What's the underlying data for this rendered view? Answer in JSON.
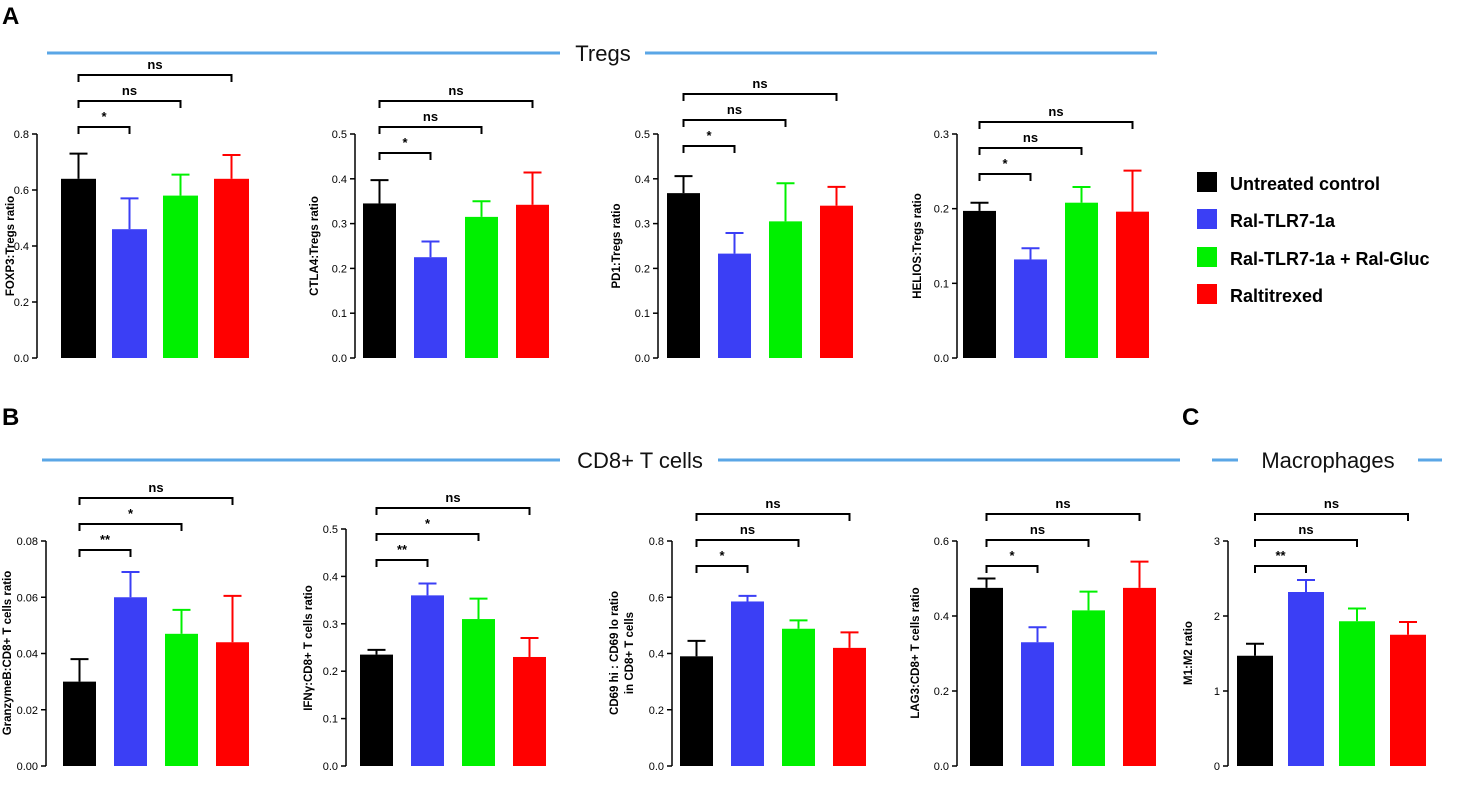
{
  "panels": {
    "A": "A",
    "B": "B",
    "C": "C"
  },
  "sections": {
    "tregs": "Tregs",
    "cd8": "CD8+ T cells",
    "macrophages": "Macrophages"
  },
  "colors": {
    "accent_line": "#5aa6e6",
    "groups": [
      "#000000",
      "#3b3ff5",
      "#00f000",
      "#ff0000"
    ]
  },
  "legend": [
    {
      "label": "Untreated control",
      "color": "#000000"
    },
    {
      "label": "Ral-TLR7-1a",
      "color": "#3b3ff5"
    },
    {
      "label": "Ral-TLR7-1a + Ral-Gluc",
      "color": "#00f000"
    },
    {
      "label": "Raltitrexed",
      "color": "#ff0000"
    }
  ],
  "chart_data": [
    {
      "id": "foxp3",
      "type": "bar",
      "title": "",
      "xlabel": "",
      "ylabel": "FOXP3:Tregs ratio",
      "categories": [
        "Untreated control",
        "Ral-TLR7-1a",
        "Ral-TLR7-1a + Ral-Gluc",
        "Raltitrexed"
      ],
      "values": [
        0.64,
        0.46,
        0.58,
        0.64
      ],
      "errors": [
        0.09,
        0.11,
        0.075,
        0.085
      ],
      "ylim": [
        0,
        0.8
      ],
      "yticks": [
        "0.0",
        "0.2",
        "0.4",
        "0.6",
        "0.8"
      ],
      "significance": [
        {
          "from": 0,
          "to": 1,
          "label": "*"
        },
        {
          "from": 0,
          "to": 2,
          "label": "ns"
        },
        {
          "from": 0,
          "to": 3,
          "label": "ns"
        }
      ]
    },
    {
      "id": "ctla4",
      "type": "bar",
      "title": "",
      "xlabel": "",
      "ylabel": "CTLA4:Tregs ratio",
      "categories": [
        "Untreated control",
        "Ral-TLR7-1a",
        "Ral-TLR7-1a + Ral-Gluc",
        "Raltitrexed"
      ],
      "values": [
        0.345,
        0.225,
        0.315,
        0.342
      ],
      "errors": [
        0.052,
        0.035,
        0.035,
        0.072
      ],
      "ylim": [
        0,
        0.5
      ],
      "yticks": [
        "0.0",
        "0.1",
        "0.2",
        "0.3",
        "0.4",
        "0.5"
      ],
      "significance": [
        {
          "from": 0,
          "to": 1,
          "label": "*"
        },
        {
          "from": 0,
          "to": 2,
          "label": "ns"
        },
        {
          "from": 0,
          "to": 3,
          "label": "ns"
        }
      ]
    },
    {
      "id": "pd1",
      "type": "bar",
      "title": "",
      "xlabel": "",
      "ylabel": "PD1:Tregs ratio",
      "categories": [
        "Untreated control",
        "Ral-TLR7-1a",
        "Ral-TLR7-1a + Ral-Gluc",
        "Raltitrexed"
      ],
      "values": [
        0.368,
        0.233,
        0.305,
        0.34
      ],
      "errors": [
        0.038,
        0.046,
        0.085,
        0.042
      ],
      "ylim": [
        0,
        0.5
      ],
      "yticks": [
        "0.0",
        "0.1",
        "0.2",
        "0.3",
        "0.4",
        "0.5"
      ],
      "significance": [
        {
          "from": 0,
          "to": 1,
          "label": "*"
        },
        {
          "from": 0,
          "to": 2,
          "label": "ns"
        },
        {
          "from": 0,
          "to": 3,
          "label": "ns"
        }
      ]
    },
    {
      "id": "helios",
      "type": "bar",
      "title": "",
      "xlabel": "",
      "ylabel": "HELIOS:Tregs ratio",
      "categories": [
        "Untreated control",
        "Ral-TLR7-1a",
        "Ral-TLR7-1a + Ral-Gluc",
        "Raltitrexed"
      ],
      "values": [
        0.197,
        0.132,
        0.208,
        0.196
      ],
      "errors": [
        0.011,
        0.015,
        0.021,
        0.055
      ],
      "ylim": [
        0,
        0.3
      ],
      "yticks": [
        "0.0",
        "0.1",
        "0.2",
        "0.3"
      ],
      "significance": [
        {
          "from": 0,
          "to": 1,
          "label": "*"
        },
        {
          "from": 0,
          "to": 2,
          "label": "ns"
        },
        {
          "from": 0,
          "to": 3,
          "label": "ns"
        }
      ]
    },
    {
      "id": "granzymeb",
      "type": "bar",
      "title": "",
      "xlabel": "",
      "ylabel": "GranzymeB:CD8+ T cells ratio",
      "categories": [
        "Untreated control",
        "Ral-TLR7-1a",
        "Ral-TLR7-1a + Ral-Gluc",
        "Raltitrexed"
      ],
      "values": [
        0.03,
        0.06,
        0.047,
        0.044
      ],
      "errors": [
        0.008,
        0.009,
        0.0085,
        0.0165
      ],
      "ylim": [
        0,
        0.08
      ],
      "yticks": [
        "0.00",
        "0.02",
        "0.04",
        "0.06",
        "0.08"
      ],
      "significance": [
        {
          "from": 0,
          "to": 1,
          "label": "**"
        },
        {
          "from": 0,
          "to": 2,
          "label": "*"
        },
        {
          "from": 0,
          "to": 3,
          "label": "ns"
        }
      ]
    },
    {
      "id": "ifng",
      "type": "bar",
      "title": "",
      "xlabel": "",
      "ylabel": "IFNγ:CD8+ T cells ratio",
      "categories": [
        "Untreated control",
        "Ral-TLR7-1a",
        "Ral-TLR7-1a + Ral-Gluc",
        "Raltitrexed"
      ],
      "values": [
        0.235,
        0.36,
        0.31,
        0.23
      ],
      "errors": [
        0.01,
        0.025,
        0.043,
        0.04
      ],
      "ylim": [
        0,
        0.5
      ],
      "yticks": [
        "0.0",
        "0.1",
        "0.2",
        "0.3",
        "0.4",
        "0.5"
      ],
      "significance": [
        {
          "from": 0,
          "to": 1,
          "label": "**"
        },
        {
          "from": 0,
          "to": 2,
          "label": "*"
        },
        {
          "from": 0,
          "to": 3,
          "label": "ns"
        }
      ]
    },
    {
      "id": "cd69",
      "type": "bar",
      "title": "",
      "xlabel": "",
      "ylabel": "CD69 hi : CD69 lo ratio in CD8+ T cells",
      "ylabel_lines": [
        "CD69 hi : CD69 lo ratio",
        "in CD8+ T cells"
      ],
      "categories": [
        "Untreated control",
        "Ral-TLR7-1a",
        "Ral-TLR7-1a + Ral-Gluc",
        "Raltitrexed"
      ],
      "values": [
        0.39,
        0.585,
        0.488,
        0.42
      ],
      "errors": [
        0.055,
        0.02,
        0.03,
        0.055
      ],
      "ylim": [
        0,
        0.8
      ],
      "yticks": [
        "0.0",
        "0.2",
        "0.4",
        "0.6",
        "0.8"
      ],
      "significance": [
        {
          "from": 0,
          "to": 1,
          "label": "*"
        },
        {
          "from": 0,
          "to": 2,
          "label": "ns"
        },
        {
          "from": 0,
          "to": 3,
          "label": "ns"
        }
      ]
    },
    {
      "id": "lag3",
      "type": "bar",
      "title": "",
      "xlabel": "",
      "ylabel": "LAG3:CD8+ T cells ratio",
      "categories": [
        "Untreated control",
        "Ral-TLR7-1a",
        "Ral-TLR7-1a + Ral-Gluc",
        "Raltitrexed"
      ],
      "values": [
        0.475,
        0.33,
        0.415,
        0.475
      ],
      "errors": [
        0.025,
        0.04,
        0.05,
        0.07
      ],
      "ylim": [
        0,
        0.6
      ],
      "yticks": [
        "0.0",
        "0.2",
        "0.4",
        "0.6"
      ],
      "significance": [
        {
          "from": 0,
          "to": 1,
          "label": "*"
        },
        {
          "from": 0,
          "to": 2,
          "label": "ns"
        },
        {
          "from": 0,
          "to": 3,
          "label": "ns"
        }
      ]
    },
    {
      "id": "m1m2",
      "type": "bar",
      "title": "",
      "xlabel": "",
      "ylabel": "M1:M2 ratio",
      "categories": [
        "Untreated control",
        "Ral-TLR7-1a",
        "Ral-TLR7-1a + Ral-Gluc",
        "Raltitrexed"
      ],
      "values": [
        1.47,
        2.32,
        1.93,
        1.75
      ],
      "errors": [
        0.16,
        0.16,
        0.17,
        0.17
      ],
      "ylim": [
        0,
        3
      ],
      "yticks": [
        "0",
        "1",
        "2",
        "3"
      ],
      "significance": [
        {
          "from": 0,
          "to": 1,
          "label": "**"
        },
        {
          "from": 0,
          "to": 2,
          "label": "ns"
        },
        {
          "from": 0,
          "to": 3,
          "label": "ns"
        }
      ]
    }
  ]
}
